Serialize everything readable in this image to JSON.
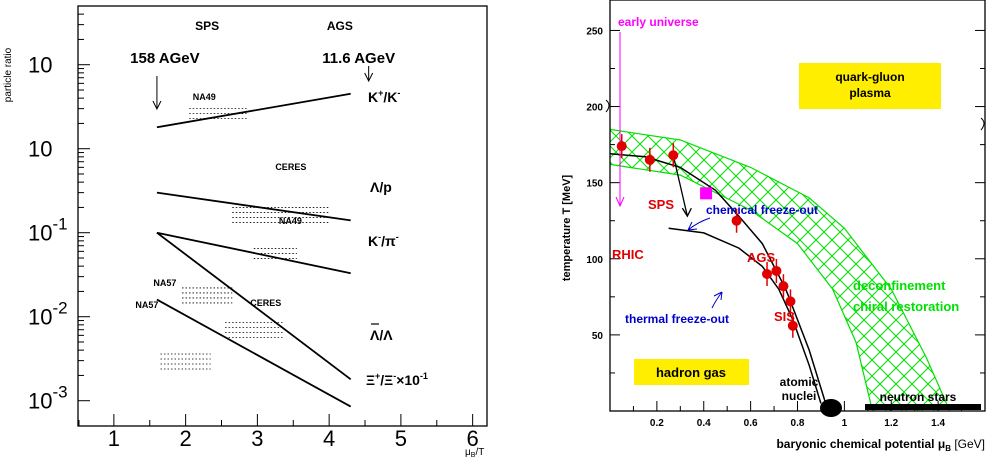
{
  "chart_data": [
    {
      "type": "line",
      "ylabel": "particle ratio",
      "xlabel": "μB/T",
      "x_ticks": [
        "1",
        "2",
        "3",
        "4",
        "5",
        "6"
      ],
      "y_tick_labels": [
        {
          "exp": "",
          "value": 10
        },
        {
          "exp": "",
          "value": 1
        },
        {
          "exp": "-1",
          "value": 0.1
        },
        {
          "exp": "-2",
          "value": 0.01
        },
        {
          "exp": "-3",
          "value": 0.001
        }
      ],
      "xlim": [
        0.5,
        6.2
      ],
      "ylim": [
        0.0005,
        50
      ],
      "yscale": "log",
      "energy_labels": [
        {
          "accelerator": "SPS",
          "energy": "158 AGeV",
          "x": 1.6
        },
        {
          "accelerator": "AGS",
          "energy": "11.6 AGeV",
          "x": 4.3
        }
      ],
      "series": [
        {
          "name": "K+/K-",
          "x": [
            1.6,
            4.3
          ],
          "y": [
            1.8,
            4.5
          ]
        },
        {
          "name": "Λ/p",
          "x": [
            1.6,
            4.3
          ],
          "y": [
            0.3,
            0.14
          ]
        },
        {
          "name": "K-/π-",
          "x": [
            1.6,
            4.3
          ],
          "y": [
            0.1,
            0.033
          ]
        },
        {
          "name": "Λ̄/Λ",
          "x": [
            1.6,
            4.3
          ],
          "y": [
            0.1,
            0.0018
          ]
        },
        {
          "name": "Ξ+/Ξ-×10-1",
          "x": [
            1.6,
            4.3
          ],
          "y": [
            0.016,
            0.00085
          ]
        }
      ],
      "experiment_labels": [
        "NA49",
        "CERES",
        "NA49",
        "NA57",
        "CERES",
        "NA57"
      ],
      "series_labels": {
        "kk": {
          "a": "K",
          "sa": "+",
          "sl": "/K",
          "sb": "-"
        },
        "lp": "Λ/p",
        "kpi": {
          "a": "K",
          "sa": "-",
          "sl": "/π",
          "sb": "-"
        },
        "alal": "Λ/Λ",
        "xx": {
          "a": "Ξ",
          "sa": "+",
          "sl": "/Ξ",
          "sb": "-",
          "c": "×10",
          "sc": "-1"
        }
      }
    },
    {
      "type": "scatter",
      "ylabel": "temperature T [MeV]",
      "xlabel": "baryonic chemical potential μB [GeV]",
      "x_ticks": [
        "0.2",
        "0.4",
        "0.6",
        "0.8",
        "1",
        "1.2",
        "1.4"
      ],
      "y_ticks": [
        "50",
        "100",
        "150",
        "200",
        "250"
      ],
      "xlim": [
        0,
        1.6
      ],
      "ylim": [
        0,
        270
      ],
      "points": [
        {
          "x": 0.05,
          "y": 174
        },
        {
          "x": 0.17,
          "y": 165
        },
        {
          "x": 0.27,
          "y": 168
        },
        {
          "x": 0.54,
          "y": 125
        },
        {
          "x": 0.67,
          "y": 90
        },
        {
          "x": 0.71,
          "y": 92
        },
        {
          "x": 0.74,
          "y": 82
        },
        {
          "x": 0.77,
          "y": 72
        },
        {
          "x": 0.78,
          "y": 56
        }
      ],
      "square_point": {
        "x": 0.41,
        "y": 143
      },
      "region_labels": {
        "early_universe": "early universe",
        "qgp_line1": "quark-gluon",
        "qgp_line2": "plasma",
        "hadron_gas": "hadron gas",
        "chemical": "chemical freeze-out",
        "thermal": "thermal freeze-out",
        "deconf": "deconfinement",
        "chiral": "chiral restoration",
        "atomic1": "atomic",
        "atomic2": "nuclei",
        "neutron": "neutron stars",
        "rhic": "RHIC",
        "sps": "SPS",
        "ags": "AGS",
        "sis": "SIS"
      },
      "colors": {
        "data": "#e00000",
        "band": "#00e000",
        "label_box": "#ffee00",
        "early_universe": "#ff00ff",
        "freezeout": "#0000cc"
      }
    }
  ]
}
